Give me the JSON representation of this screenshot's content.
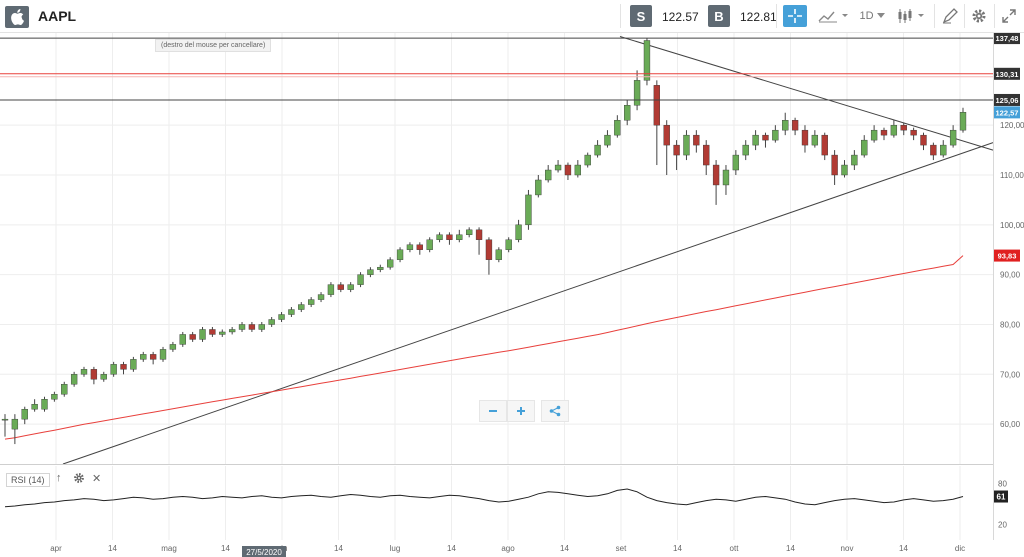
{
  "header": {
    "symbol": "AAPL",
    "sell_label": "S",
    "sell_price": "122.57",
    "buy_label": "B",
    "buy_price": "122.81",
    "interval": "1D"
  },
  "tooltip_text": "(destro del mouse per cancellare)",
  "date_marker": "27/5/2020",
  "colors": {
    "up": "#6aab57",
    "down": "#b13b34",
    "ma": "#e8403c",
    "accent": "#45a0d8",
    "badge": "#5f6a73"
  },
  "chart_data": {
    "type": "candlestick",
    "title": "AAPL",
    "x_tick_labels": [
      "apr",
      "14",
      "mag",
      "14",
      "giu",
      "14",
      "lug",
      "14",
      "ago",
      "14",
      "set",
      "14",
      "ott",
      "14",
      "nov",
      "14",
      "dic"
    ],
    "y_tick_labels": [
      "60,00",
      "70,00",
      "80,00",
      "90,00",
      "100,00",
      "110,00",
      "120,00"
    ],
    "ylim": [
      52,
      138.5
    ],
    "price_levels": [
      {
        "value": 137.48,
        "label": "137,48"
      },
      {
        "value": 130.31,
        "label": "130,31"
      },
      {
        "value": 125.06,
        "label": "125,06"
      },
      {
        "value": 122.57,
        "label": "122,57"
      },
      {
        "value": 93.83,
        "label": "93,83"
      }
    ],
    "rsi": {
      "name": "RSI (14)",
      "current": 61,
      "tick_labels": [
        "80",
        "20"
      ],
      "values": [
        46,
        47,
        49,
        50,
        52,
        53,
        55,
        56,
        58,
        57,
        55,
        56,
        58,
        60,
        59,
        57,
        58,
        60,
        61,
        60,
        58,
        59,
        61,
        60,
        59,
        61,
        62,
        60,
        59,
        61,
        62,
        63,
        61,
        60,
        62,
        64,
        63,
        61,
        60,
        62,
        63,
        61,
        60,
        59,
        61,
        63,
        62,
        60,
        58,
        55,
        53,
        54,
        57,
        60,
        65,
        68,
        67,
        65,
        63,
        61,
        62,
        65,
        70,
        72,
        68,
        60,
        55,
        52,
        50,
        49,
        52,
        55,
        57,
        56,
        54,
        57,
        60,
        61,
        59,
        57,
        53,
        50,
        49,
        52,
        55,
        57,
        58,
        56,
        54,
        52,
        53,
        56,
        58,
        56,
        54,
        55,
        57,
        61
      ]
    },
    "candles": [
      [
        61,
        61,
        57.5,
        62
      ],
      [
        59,
        61,
        56,
        62
      ],
      [
        61,
        63,
        60,
        63.5
      ],
      [
        63,
        64,
        62.5,
        65
      ],
      [
        63,
        65,
        62.5,
        65.5
      ],
      [
        65,
        66,
        64.5,
        66.5
      ],
      [
        66,
        68,
        65.5,
        68.5
      ],
      [
        68,
        70,
        67.5,
        70.5
      ],
      [
        70,
        71,
        69.5,
        71.5
      ],
      [
        71,
        69,
        68,
        71.5
      ],
      [
        69,
        70,
        68.5,
        70.5
      ],
      [
        70,
        72,
        69.5,
        72.5
      ],
      [
        72,
        71,
        70,
        72.5
      ],
      [
        71,
        73,
        70.5,
        73.5
      ],
      [
        73,
        74,
        72.5,
        74.5
      ],
      [
        74,
        73,
        72,
        74.5
      ],
      [
        73,
        75,
        72.5,
        75.5
      ],
      [
        75,
        76,
        74.5,
        76.5
      ],
      [
        76,
        78,
        75.5,
        78.5
      ],
      [
        78,
        77,
        76.5,
        78.5
      ],
      [
        77,
        79,
        76.5,
        79.5
      ],
      [
        79,
        78,
        77.5,
        79.5
      ],
      [
        78,
        78.5,
        77.5,
        79
      ],
      [
        78.5,
        79,
        78,
        79.5
      ],
      [
        79,
        80,
        78.5,
        80.5
      ],
      [
        80,
        79,
        78.5,
        80.5
      ],
      [
        79,
        80,
        78.5,
        80.5
      ],
      [
        80,
        81,
        79.5,
        81.5
      ],
      [
        81,
        82,
        80.5,
        82.5
      ],
      [
        82,
        83,
        81.5,
        83.5
      ],
      [
        83,
        84,
        82.5,
        84.5
      ],
      [
        84,
        85,
        83.5,
        85.5
      ],
      [
        85,
        86,
        84.5,
        86.5
      ],
      [
        86,
        88,
        85.5,
        88.5
      ],
      [
        88,
        87,
        86.5,
        88.5
      ],
      [
        87,
        88,
        86.5,
        88.5
      ],
      [
        88,
        90,
        87.5,
        90.5
      ],
      [
        90,
        91,
        89.5,
        91.5
      ],
      [
        91,
        91.5,
        90.5,
        92
      ],
      [
        91.5,
        93,
        91,
        93.5
      ],
      [
        93,
        95,
        92.5,
        95.5
      ],
      [
        95,
        96,
        94.5,
        96.5
      ],
      [
        96,
        95,
        94,
        96.5
      ],
      [
        95,
        97,
        94.5,
        97.5
      ],
      [
        97,
        98,
        96.5,
        98.5
      ],
      [
        98,
        97,
        96,
        98.5
      ],
      [
        97,
        98,
        96.5,
        99
      ],
      [
        98,
        99,
        97.5,
        99.5
      ],
      [
        99,
        97,
        94,
        99.5
      ],
      [
        97,
        93,
        90,
        97.5
      ],
      [
        93,
        95,
        92.5,
        95.5
      ],
      [
        95,
        97,
        94.5,
        97.5
      ],
      [
        97,
        100,
        96.5,
        101
      ],
      [
        100,
        106,
        99,
        107
      ],
      [
        106,
        109,
        105.5,
        110
      ],
      [
        109,
        111,
        108.5,
        112
      ],
      [
        111,
        112,
        110.5,
        113
      ],
      [
        112,
        110,
        109,
        112.5
      ],
      [
        110,
        112,
        109.5,
        113
      ],
      [
        112,
        114,
        111.5,
        114.5
      ],
      [
        114,
        116,
        113.5,
        117
      ],
      [
        116,
        118,
        115.5,
        119
      ],
      [
        118,
        121,
        117.5,
        122
      ],
      [
        121,
        124,
        120,
        125
      ],
      [
        124,
        129,
        123,
        131
      ],
      [
        129,
        137,
        128,
        137.5
      ],
      [
        128,
        120,
        112,
        129
      ],
      [
        120,
        116,
        110,
        121
      ],
      [
        116,
        114,
        111,
        117
      ],
      [
        114,
        118,
        113,
        119
      ],
      [
        118,
        116,
        114.5,
        119
      ],
      [
        116,
        112,
        110,
        117
      ],
      [
        112,
        108,
        104,
        113
      ],
      [
        108,
        111,
        106,
        112
      ],
      [
        111,
        114,
        110,
        115
      ],
      [
        114,
        116,
        113,
        117
      ],
      [
        116,
        118,
        115,
        119
      ],
      [
        118,
        117,
        115.5,
        118.5
      ],
      [
        117,
        119,
        116.5,
        120
      ],
      [
        119,
        121,
        118,
        122.5
      ],
      [
        121,
        119,
        118,
        121.5
      ],
      [
        119,
        116,
        114.5,
        120
      ],
      [
        116,
        118,
        115.5,
        119
      ],
      [
        118,
        114,
        113,
        118.5
      ],
      [
        114,
        110,
        108,
        115
      ],
      [
        110,
        112,
        109.5,
        113
      ],
      [
        112,
        114,
        111,
        115
      ],
      [
        114,
        117,
        113.5,
        118
      ],
      [
        117,
        119,
        116.5,
        120
      ],
      [
        119,
        118,
        117,
        119.5
      ],
      [
        118,
        120,
        117.5,
        121
      ],
      [
        120,
        119,
        118,
        120.5
      ],
      [
        119,
        118,
        117,
        119.5
      ],
      [
        118,
        116,
        115,
        118.5
      ],
      [
        116,
        114,
        113,
        116.5
      ],
      [
        114,
        116,
        113.5,
        117
      ],
      [
        116,
        119,
        115.5,
        120
      ],
      [
        119,
        122.6,
        118.5,
        123.5
      ]
    ]
  }
}
